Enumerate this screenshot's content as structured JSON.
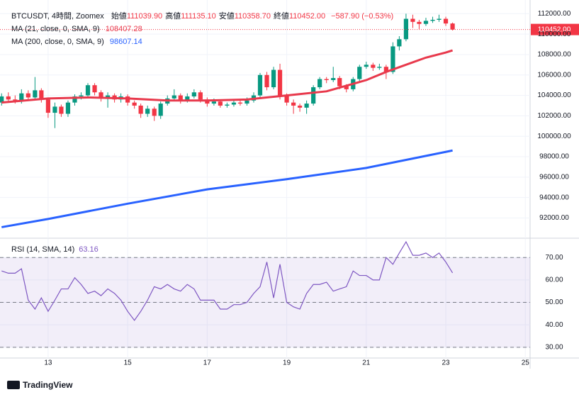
{
  "chart_data": [
    {
      "type": "candlestick",
      "symbol": "BTCUSDT, 4時間, Zoomex",
      "ohlc_legend": [
        {
          "label": "始値",
          "value": "111039.90"
        },
        {
          "label": "高値",
          "value": "111135.10"
        },
        {
          "label": "安値",
          "value": "110358.70"
        },
        {
          "label": "終値",
          "value": "110452.00"
        }
      ],
      "change": "−587.90 (−0.53%)",
      "last_price_label": "110452.00",
      "up_color": "#089981",
      "down_color": "#f23645",
      "x": [
        11.83,
        12,
        12.17,
        12.33,
        12.5,
        12.67,
        12.83,
        13,
        13.17,
        13.33,
        13.5,
        13.67,
        13.83,
        14,
        14.17,
        14.33,
        14.5,
        14.67,
        14.83,
        15,
        15.17,
        15.33,
        15.5,
        15.67,
        15.83,
        16,
        16.17,
        16.33,
        16.5,
        16.67,
        16.83,
        17,
        17.17,
        17.33,
        17.5,
        17.67,
        17.83,
        18,
        18.17,
        18.33,
        18.5,
        18.67,
        18.83,
        19,
        19.17,
        19.33,
        19.5,
        19.67,
        19.83,
        20,
        20.17,
        20.33,
        20.5,
        20.67,
        20.83,
        21,
        21.17,
        21.33,
        21.5,
        21.67,
        21.83,
        22,
        22.17,
        22.33,
        22.5,
        22.67,
        22.83,
        23,
        23.17
      ],
      "open": [
        103300,
        103900,
        103600,
        103500,
        104200,
        103800,
        104500,
        103600,
        102300,
        102900,
        102200,
        103300,
        103900,
        104000,
        105000,
        104300,
        103700,
        104000,
        103600,
        103900,
        103300,
        103000,
        102200,
        102700,
        102000,
        103200,
        103700,
        104000,
        103500,
        103900,
        104300,
        103600,
        103200,
        103400,
        103000,
        103100,
        103300,
        103200,
        103500,
        104000,
        106000,
        104800,
        106500,
        104000,
        103300,
        103000,
        102800,
        103200,
        104800,
        105600,
        105500,
        105700,
        104900,
        104600,
        105600,
        106800,
        107000,
        106700,
        106800,
        106300,
        108800,
        109500,
        111500,
        111200,
        111000,
        111300,
        111400,
        111500,
        111039.9
      ],
      "high": [
        104200,
        104300,
        104000,
        104600,
        104500,
        105800,
        104700,
        103800,
        103300,
        103100,
        103500,
        104100,
        104300,
        105200,
        105200,
        104500,
        104300,
        104200,
        104200,
        104100,
        103500,
        103200,
        103000,
        102900,
        103400,
        104000,
        104600,
        104200,
        104200,
        104600,
        104500,
        103800,
        103700,
        103600,
        103300,
        103500,
        103500,
        103800,
        104300,
        106200,
        106300,
        106800,
        107100,
        104200,
        103600,
        103200,
        103500,
        105000,
        105800,
        105800,
        106800,
        105900,
        105100,
        105800,
        107000,
        107300,
        107200,
        107100,
        107000,
        109200,
        109800,
        112000,
        111900,
        111400,
        111600,
        111700,
        111900,
        111700,
        111135.1
      ],
      "low": [
        103000,
        103300,
        103200,
        103200,
        103500,
        103600,
        103300,
        101800,
        100800,
        101900,
        101900,
        103000,
        103600,
        103800,
        104000,
        103400,
        102800,
        103300,
        103300,
        103000,
        102700,
        101800,
        101900,
        101500,
        101700,
        103000,
        103500,
        103200,
        103300,
        103700,
        103300,
        102900,
        103000,
        102800,
        102800,
        102900,
        103000,
        103000,
        103300,
        103800,
        104500,
        104600,
        103600,
        103000,
        102200,
        102400,
        102200,
        103000,
        104600,
        105200,
        105300,
        104600,
        104300,
        104400,
        105400,
        106600,
        106400,
        106500,
        105600,
        106100,
        108400,
        109300,
        110600,
        110500,
        110800,
        111100,
        111200,
        110800,
        110358.7
      ],
      "close": [
        103900,
        103600,
        103500,
        104200,
        103800,
        104500,
        103600,
        102300,
        102900,
        102200,
        103300,
        103900,
        104000,
        105000,
        104300,
        103700,
        104000,
        103600,
        103900,
        103300,
        103000,
        102200,
        102700,
        102000,
        103200,
        103700,
        104000,
        103500,
        103900,
        104300,
        103600,
        103200,
        103400,
        103000,
        103100,
        103300,
        103200,
        103500,
        104000,
        106000,
        104800,
        106500,
        104000,
        103300,
        103000,
        102800,
        103200,
        104800,
        105600,
        105500,
        105700,
        104900,
        104600,
        105600,
        106800,
        107000,
        106700,
        106800,
        106300,
        108800,
        109500,
        111500,
        111200,
        111000,
        111300,
        111400,
        111500,
        111039.9,
        110452
      ],
      "lines": [
        {
          "name": "MA (200, close, 0, SMA, 9)",
          "value_label": "98607.14",
          "color": "#2962ff",
          "x": [
            11.83,
            13,
            15,
            17,
            19,
            21,
            23.17
          ],
          "values": [
            91100,
            91900,
            93400,
            94800,
            95800,
            96900,
            98607.14
          ]
        },
        {
          "name": "MA (21, close, 0, SMA, 9)",
          "value_label": "108407.28",
          "color": "#e8394c",
          "x": [
            11.83,
            13,
            14,
            15,
            16,
            17,
            18,
            19,
            20,
            21,
            21.5,
            22,
            22.5,
            23,
            23.17
          ],
          "values": [
            103300,
            103700,
            103800,
            103700,
            103500,
            103500,
            103600,
            104000,
            104400,
            105500,
            106300,
            107000,
            107700,
            108200,
            108407.28
          ]
        }
      ],
      "xlim": [
        11.79,
        25.12
      ],
      "xticks": [
        13,
        15,
        17,
        19,
        21,
        23,
        25
      ],
      "ylim": [
        90020,
        113340
      ],
      "yticks": [
        {
          "value": 92000,
          "label": "92000.00"
        },
        {
          "value": 94000,
          "label": "94000.00"
        },
        {
          "value": 96000,
          "label": "96000.00"
        },
        {
          "value": 98000,
          "label": "98000.00"
        },
        {
          "value": 100000,
          "label": "100000.00"
        },
        {
          "value": 102000,
          "label": "102000.00"
        },
        {
          "value": 104000,
          "label": "104000.00"
        },
        {
          "value": 106000,
          "label": "106000.00"
        },
        {
          "value": 108000,
          "label": "108000.00"
        },
        {
          "value": 110000,
          "label": "110000.00"
        },
        {
          "value": 112000,
          "label": "112000.00"
        }
      ],
      "grid": true
    },
    {
      "type": "line",
      "name": "RSI (14, SMA, 14)",
      "value_label": "63.16",
      "color": "#7e57c2",
      "x": [
        11.83,
        12,
        12.17,
        12.33,
        12.5,
        12.67,
        12.83,
        13,
        13.17,
        13.33,
        13.5,
        13.67,
        13.83,
        14,
        14.17,
        14.33,
        14.5,
        14.67,
        14.83,
        15,
        15.17,
        15.33,
        15.5,
        15.67,
        15.83,
        16,
        16.17,
        16.33,
        16.5,
        16.67,
        16.83,
        17,
        17.17,
        17.33,
        17.5,
        17.67,
        17.83,
        18,
        18.17,
        18.33,
        18.5,
        18.67,
        18.83,
        19,
        19.17,
        19.33,
        19.5,
        19.67,
        19.83,
        20,
        20.17,
        20.33,
        20.5,
        20.67,
        20.83,
        21,
        21.17,
        21.33,
        21.5,
        21.67,
        21.83,
        22,
        22.17,
        22.33,
        22.5,
        22.67,
        22.83,
        23,
        23.17
      ],
      "values": [
        64,
        63,
        63,
        65,
        51,
        47,
        52,
        46,
        51,
        56,
        56,
        61,
        58,
        54,
        55,
        53,
        56,
        54,
        51,
        46,
        42,
        46,
        51,
        57,
        56,
        58,
        56,
        55,
        58,
        56,
        51,
        51,
        51,
        47,
        47,
        49,
        49,
        50,
        54,
        57,
        68,
        52,
        67,
        50,
        48,
        47,
        54,
        58,
        58,
        59,
        55,
        56,
        57,
        64,
        62,
        62,
        60,
        60,
        70,
        67,
        72,
        77,
        71,
        71,
        72,
        70,
        72,
        68,
        63.16
      ],
      "band": [
        30,
        70
      ],
      "midline": 50,
      "xlim": [
        11.79,
        25.12
      ],
      "xticks": [
        13,
        15,
        17,
        19,
        21,
        23,
        25
      ],
      "ylim": [
        25.2,
        78.3
      ],
      "yticks": [
        {
          "value": 30,
          "label": "30.00"
        },
        {
          "value": 40,
          "label": "40.00"
        },
        {
          "value": 50,
          "label": "50.00"
        },
        {
          "value": 60,
          "label": "60.00"
        },
        {
          "value": 70,
          "label": "70.00"
        }
      ],
      "grid": true
    }
  ],
  "footer": {
    "brand": "TradingView"
  }
}
